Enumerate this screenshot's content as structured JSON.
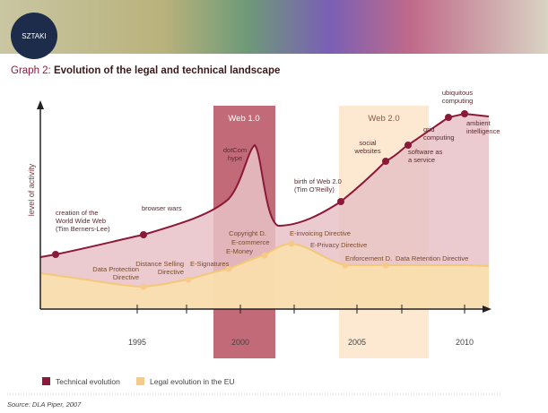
{
  "banner": {
    "logo_text": "SZTAKI"
  },
  "title": {
    "prefix": "Graph 2:",
    "main": "Evolution of the legal and technical landscape"
  },
  "axis": {
    "y_label": "level of activity",
    "years": [
      "1995",
      "2000",
      "2005",
      "2010"
    ]
  },
  "eras": [
    "Web 1.0",
    "Web 2.0"
  ],
  "technical_events": [
    {
      "lines": [
        "creation of the",
        "World Wide Web",
        "(Tim Berners-Lee)"
      ]
    },
    {
      "lines": [
        "browser wars"
      ]
    },
    {
      "lines": [
        "dotCom",
        "hype"
      ]
    },
    {
      "lines": [
        "birth of Web 2.0",
        "(Tim O'Reilly)"
      ]
    },
    {
      "lines": [
        "social",
        "websites"
      ]
    },
    {
      "lines": [
        "software as",
        "a service"
      ]
    },
    {
      "lines": [
        "grid",
        "computing"
      ]
    },
    {
      "lines": [
        "ubiquitous",
        "computing"
      ]
    },
    {
      "lines": [
        "ambient",
        "intelligence"
      ]
    }
  ],
  "legal_events": [
    {
      "lines": [
        "Data Protection",
        "Directive"
      ]
    },
    {
      "lines": [
        "Distance Selling",
        "Directive"
      ]
    },
    {
      "lines": [
        "E-Signatures"
      ]
    },
    {
      "lines": [
        "Copyright D."
      ]
    },
    {
      "lines": [
        "E-commerce"
      ]
    },
    {
      "lines": [
        "E-Money"
      ]
    },
    {
      "lines": [
        "E-invoicing Directive"
      ]
    },
    {
      "lines": [
        "E-Privacy Directive"
      ]
    },
    {
      "lines": [
        "Enforcement D."
      ]
    },
    {
      "lines": [
        "Data Retention Directive"
      ]
    }
  ],
  "legend": [
    "Technical evolution",
    "Legal evolution in the EU"
  ],
  "source": "Source: DLA Piper, 2007"
}
